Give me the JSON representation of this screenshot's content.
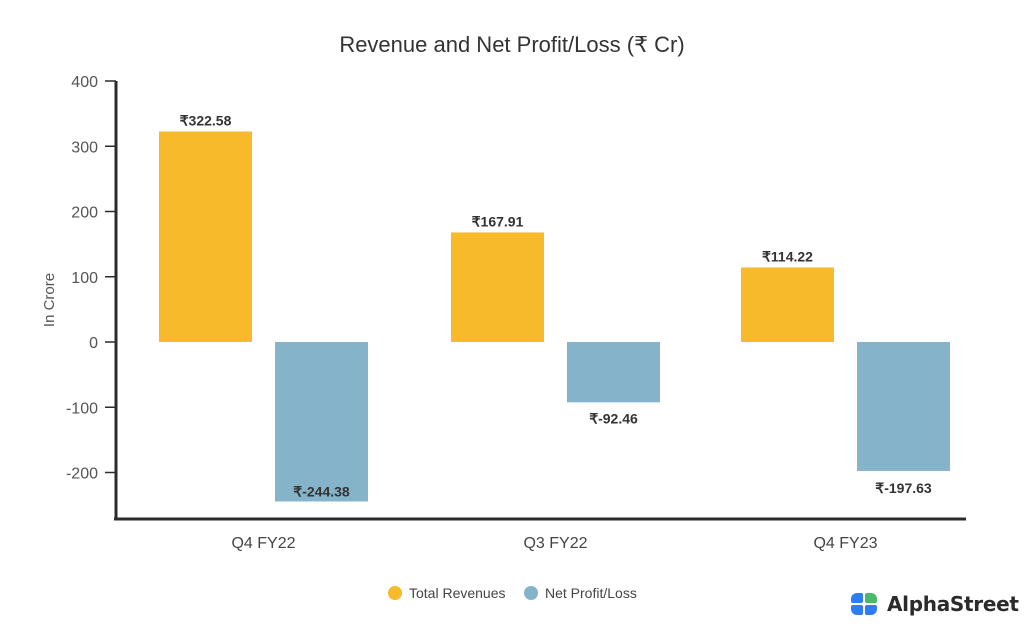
{
  "chart_data": {
    "type": "bar",
    "title": "Revenue and Net Profit/Loss (₹ Cr)",
    "xlabel": "",
    "ylabel": "In Crore",
    "ylim": [
      -271,
      400
    ],
    "yticks": [
      400,
      300,
      200,
      100,
      0,
      -100,
      -200
    ],
    "grid": false,
    "legend_position": "bottom-center",
    "categories": [
      "Q4 FY22",
      "Q3 FY22",
      "Q4 FY23"
    ],
    "series": [
      {
        "name": "Total Revenues",
        "color": "#F6BA2B",
        "values": [
          322.58,
          167.91,
          114.22
        ],
        "labels": [
          "₹322.58",
          "₹167.91",
          "₹114.22"
        ]
      },
      {
        "name": "Net Profit/Loss",
        "color": "#84B3CA",
        "values": [
          -244.38,
          -92.46,
          -197.63
        ],
        "labels": [
          "₹-244.38",
          "₹-92.46",
          "₹-197.63"
        ]
      }
    ]
  },
  "brand": {
    "name": "AlphaStreet",
    "colors": {
      "blue": "#2E7CF6",
      "green": "#4CB86E"
    }
  }
}
